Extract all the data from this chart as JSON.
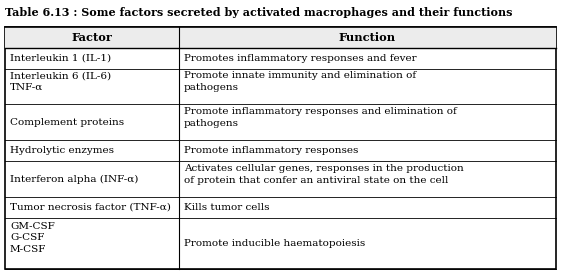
{
  "title": "Table 6.13 : Some factors secreted by activated macrophages and their functions",
  "col_headers": [
    "Factor",
    "Function"
  ],
  "rows": [
    [
      "Interleukin 1 (IL-1)",
      "Promotes inflammatory responses and fever"
    ],
    [
      "Interleukin 6 (IL-6)\nTNF-α",
      "Promote innate immunity and elimination of\npathogens"
    ],
    [
      "Complement proteins",
      "Promote inflammatory responses and elimination of\npathogens"
    ],
    [
      "Hydrolytic enzymes",
      "Promote inflammatory responses"
    ],
    [
      "Interferon alpha (INF-α)",
      "Activates cellular genes, responses in the production\nof protein that confer an antiviral state on the cell"
    ],
    [
      "Tumor necrosis factor (TNF-α)",
      "Kills tumor cells"
    ],
    [
      "GM-CSF\nG-CSF\nM-CSF",
      "Promote inducible haematopoiesis"
    ]
  ],
  "col_split": 0.315,
  "background_color": "#ffffff",
  "line_color": "#000000",
  "title_fontsize": 8.0,
  "header_fontsize": 8.2,
  "cell_fontsize": 7.5,
  "row_line_counts": [
    1,
    2,
    2,
    1,
    2,
    1,
    3
  ],
  "header_line_count": 1
}
